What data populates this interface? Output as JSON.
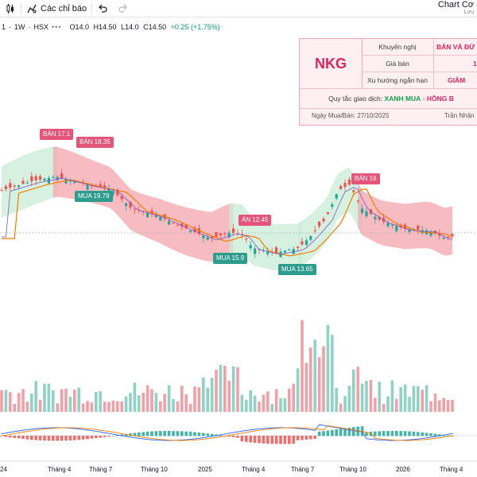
{
  "toolbar": {
    "indicators_label": "Các chỉ báo",
    "app_title": "Chart Cơ",
    "save_label": "Lưu"
  },
  "symbol": {
    "prefix": "1",
    "interval": "1W",
    "exchange": "HSX",
    "open": "O14.0",
    "high": "H14.50",
    "low": "L14.0",
    "close": "C14.50",
    "change": "+0.25 (+1.75%)"
  },
  "info_panel": {
    "ticker": "NKG",
    "recommend_label": "Khuyến nghị",
    "recommend_value": "BÁN VÀ ĐỨ",
    "price_label": "Giá bán",
    "price_value": "1",
    "trend_label": "Xu hướng ngắn hạn",
    "trend_value": "GIẢM",
    "rule_prefix": "Quy tắc giao dịch:",
    "rule_green": "XANH MUA",
    "rule_sep": " - ",
    "rule_pink": "HỒNG B",
    "date_text": "Ngày Mua/Bán: 27/10/2025",
    "author_text": "Trần Nhân"
  },
  "signals": [
    {
      "type": "sell",
      "text": "BÁN 17.1"
    },
    {
      "type": "sell",
      "text": "BÁN 18.35"
    },
    {
      "type": "buy",
      "text": "MUA 19.79"
    },
    {
      "type": "sell",
      "text": "ÁN 12.45"
    },
    {
      "type": "buy",
      "text": "MUA 15.9"
    },
    {
      "type": "buy",
      "text": "MUA 13.65"
    },
    {
      "type": "sell",
      "text": "BÁN 16"
    }
  ],
  "x_axis": {
    "labels": [
      "24",
      "Tháng 4",
      "Tháng 7",
      "Tháng 10",
      "2025",
      "Tháng 4",
      "Tháng 7",
      "Tháng 10",
      "2026",
      "Tháng 4"
    ]
  },
  "colors": {
    "up": "#26a69a",
    "down": "#ef5350",
    "band_up": "#c8ecd6",
    "band_down": "#f4a6ae",
    "ma": "#f57c00",
    "signal_line": "#7e57c2"
  }
}
